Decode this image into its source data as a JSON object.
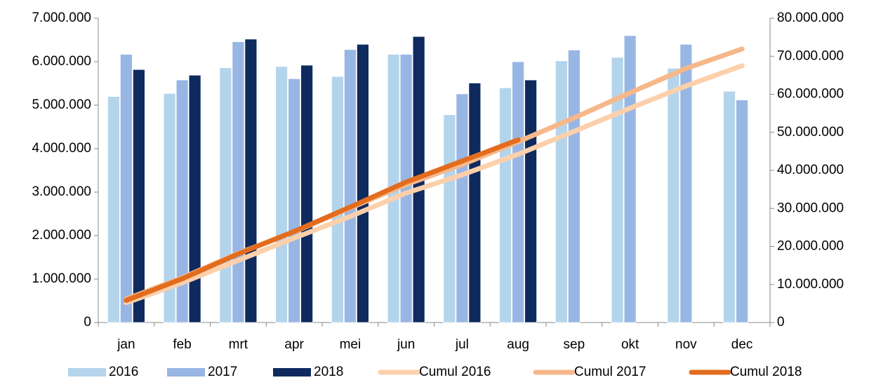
{
  "chart_data": {
    "type": "bar",
    "categories": [
      "jan",
      "feb",
      "mrt",
      "apr",
      "mei",
      "jun",
      "jul",
      "aug",
      "sep",
      "okt",
      "nov",
      "dec"
    ],
    "series": [
      {
        "name": "2016",
        "color": "#b4d4ec",
        "values": [
          5200000,
          5270000,
          5860000,
          5890000,
          5660000,
          6170000,
          4780000,
          5400000,
          6020000,
          6100000,
          5850000,
          5320000
        ]
      },
      {
        "name": "2017",
        "color": "#98b6e4",
        "values": [
          6170000,
          5580000,
          6460000,
          5610000,
          6280000,
          6170000,
          5260000,
          6000000,
          6270000,
          6600000,
          6400000,
          5120000
        ]
      },
      {
        "name": "2018",
        "color": "#0e2a5e",
        "values": [
          5820000,
          5690000,
          6520000,
          5920000,
          6400000,
          6580000,
          5510000,
          5580000,
          null,
          null,
          null,
          null
        ]
      },
      {
        "name": "Cumul 2016",
        "type": "line",
        "axis": "y2",
        "color": "#fcd0ab",
        "values": [
          5200000,
          10470000,
          16330000,
          22220000,
          27880000,
          34050000,
          38830000,
          44230000,
          50250000,
          56350000,
          62200000,
          67520000
        ]
      },
      {
        "name": "Cumul 2017",
        "type": "line",
        "axis": "y2",
        "color": "#f6b88a",
        "values": [
          6170000,
          11750000,
          18210000,
          23820000,
          30100000,
          36270000,
          41530000,
          47530000,
          53800000,
          60400000,
          66800000,
          71920000
        ]
      },
      {
        "name": "Cumul 2018",
        "type": "line",
        "axis": "y2",
        "color": "#e36c1e",
        "values": [
          5820000,
          11510000,
          18030000,
          23950000,
          30350000,
          36930000,
          42440000,
          48020000,
          null,
          null,
          null,
          null
        ]
      }
    ],
    "ylim": [
      0,
      7000000
    ],
    "yticks": [
      0,
      {
        "value": 1000000,
        "label": "1.000.000"
      },
      {
        "value": 2000000,
        "label": "2.000.000"
      },
      {
        "value": 3000000,
        "label": "3.000.000"
      },
      {
        "value": 4000000,
        "label": "4.000.000"
      },
      {
        "value": 5000000,
        "label": "5.000.000"
      },
      {
        "value": 6000000,
        "label": "6.000.000"
      },
      {
        "value": 7000000,
        "label": "7.000.000"
      }
    ],
    "y2lim": [
      0,
      80000000
    ],
    "y2ticks": [
      0,
      {
        "value": 10000000,
        "label": "10.000.000"
      },
      {
        "value": 20000000,
        "label": "20.000.000"
      },
      {
        "value": 30000000,
        "label": "30.000.000"
      },
      {
        "value": 40000000,
        "label": "40.000.000"
      },
      {
        "value": 50000000,
        "label": "50.000.000"
      },
      {
        "value": 60000000,
        "label": "60.000.000"
      },
      {
        "value": 70000000,
        "label": "70.000.000"
      },
      {
        "value": 80000000,
        "label": "80.000.000"
      }
    ],
    "legend": "bottom"
  }
}
